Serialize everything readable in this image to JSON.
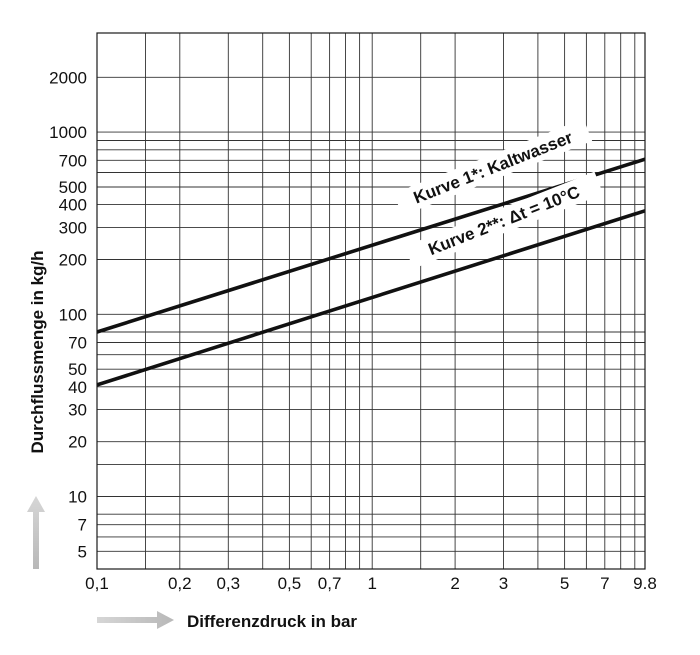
{
  "chart_data": {
    "type": "line",
    "title": "",
    "xlabel": "Differenzdruck in bar",
    "ylabel": "Durchflussmenge in kg/h",
    "x_scale": "log",
    "y_scale": "log",
    "xlim": [
      0.1,
      9.8
    ],
    "ylim": [
      4,
      3500
    ],
    "grid": true,
    "x_ticks": [
      {
        "v": 0.1,
        "label": "0,1"
      },
      {
        "v": 0.2,
        "label": "0,2"
      },
      {
        "v": 0.3,
        "label": "0,3"
      },
      {
        "v": 0.5,
        "label": "0,5"
      },
      {
        "v": 0.7,
        "label": "0,7"
      },
      {
        "v": 1,
        "label": "1"
      },
      {
        "v": 2,
        "label": "2"
      },
      {
        "v": 3,
        "label": "3"
      },
      {
        "v": 5,
        "label": "5"
      },
      {
        "v": 7,
        "label": "7"
      },
      {
        "v": 9.8,
        "label": "9.8"
      }
    ],
    "x_grid": [
      0.1,
      0.15,
      0.2,
      0.3,
      0.4,
      0.5,
      0.6,
      0.7,
      0.8,
      0.9,
      1,
      1.5,
      2,
      3,
      4,
      5,
      6,
      7,
      8,
      9,
      9.8
    ],
    "y_ticks": [
      {
        "v": 5,
        "label": "5"
      },
      {
        "v": 7,
        "label": "7"
      },
      {
        "v": 10,
        "label": "10"
      },
      {
        "v": 20,
        "label": "20"
      },
      {
        "v": 30,
        "label": "30"
      },
      {
        "v": 40,
        "label": "40"
      },
      {
        "v": 50,
        "label": "50"
      },
      {
        "v": 70,
        "label": "70"
      },
      {
        "v": 100,
        "label": "100"
      },
      {
        "v": 200,
        "label": "200"
      },
      {
        "v": 300,
        "label": "300"
      },
      {
        "v": 400,
        "label": "400"
      },
      {
        "v": 500,
        "label": "500"
      },
      {
        "v": 700,
        "label": "700"
      },
      {
        "v": 1000,
        "label": "1000"
      },
      {
        "v": 2000,
        "label": "2000"
      }
    ],
    "y_grid": [
      5,
      6,
      7,
      8,
      10,
      15,
      20,
      30,
      40,
      50,
      60,
      70,
      80,
      100,
      200,
      300,
      400,
      500,
      600,
      700,
      800,
      900,
      1000,
      2000
    ],
    "series": [
      {
        "name": "Kurve 1*: Kaltwasser",
        "x": [
          0.1,
          9.8
        ],
        "y": [
          80,
          710
        ]
      },
      {
        "name": "Kurve 2**: Δt = 10°C",
        "x": [
          0.1,
          9.8
        ],
        "y": [
          41,
          370
        ]
      }
    ]
  }
}
